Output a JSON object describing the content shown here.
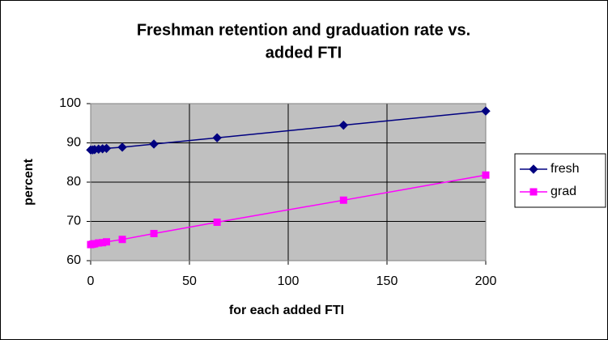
{
  "chart_data": {
    "type": "line",
    "title": [
      "Freshman retention and graduation rate vs.",
      "added FTI"
    ],
    "x_label": "for each added FTI",
    "y_label": "percent",
    "x": [
      0,
      1,
      2,
      4,
      6,
      8,
      16,
      32,
      64,
      128,
      200
    ],
    "series": [
      {
        "name": "fresh",
        "color": "#000080",
        "marker": "diamond",
        "values": [
          88.2,
          88.2,
          88.3,
          88.4,
          88.5,
          88.6,
          88.9,
          89.7,
          91.3,
          94.5,
          98.1
        ]
      },
      {
        "name": "grad",
        "color": "#ff00ff",
        "marker": "square",
        "values": [
          64.1,
          64.2,
          64.3,
          64.5,
          64.6,
          64.8,
          65.4,
          66.9,
          69.8,
          75.4,
          81.8
        ]
      }
    ],
    "xlim": [
      0,
      200
    ],
    "xticks": [
      0,
      50,
      100,
      150,
      200
    ],
    "ylim": [
      60,
      100
    ],
    "yticks": [
      60,
      70,
      80,
      90,
      100
    ],
    "grid": true,
    "legend": "right",
    "plot_background": "#c0c0c0"
  }
}
